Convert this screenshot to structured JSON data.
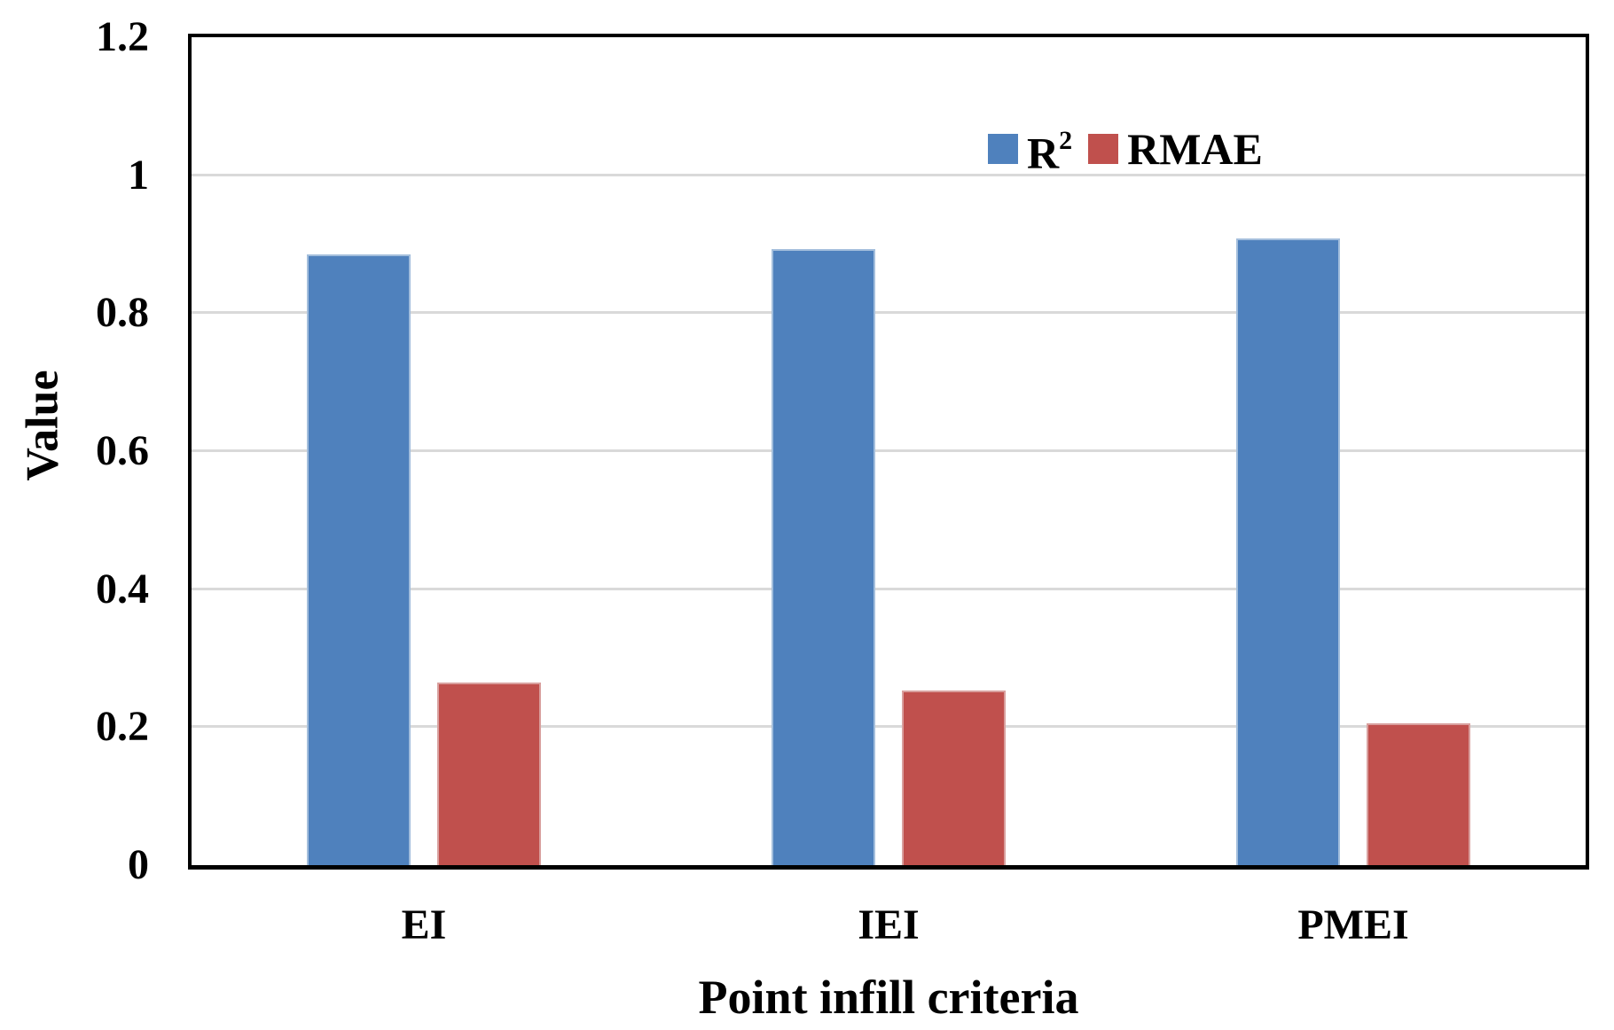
{
  "figure": {
    "background": "#FFFFFF",
    "frame_color": "#000000"
  },
  "chart_data": {
    "type": "bar",
    "title": "",
    "categories": [
      "EI",
      "IEI",
      "PMEI"
    ],
    "series": [
      {
        "name": "R²",
        "label_base": "R",
        "label_sup": "2",
        "color": "#4F81BD",
        "edge_color": "#A3BEDC",
        "values": [
          0.885,
          0.893,
          0.908
        ]
      },
      {
        "name": "RMAE",
        "label_base": "RMAE",
        "label_sup": "",
        "color": "#C0504D",
        "edge_color": "#D9A09E",
        "values": [
          0.265,
          0.253,
          0.206
        ]
      }
    ],
    "xlabel": "Point infill criteria",
    "ylabel": "Value",
    "ylim": [
      0,
      1.2
    ],
    "yticks": [
      0,
      0.2,
      0.4,
      0.6,
      0.8,
      1,
      1.2
    ],
    "ytick_labels": [
      "0",
      "0.2",
      "0.4",
      "0.6",
      "0.8",
      "1",
      "1.2"
    ],
    "grid": "horizontal",
    "gridline_color": "#D9D9D9",
    "legend_position": "top-right-inside"
  }
}
